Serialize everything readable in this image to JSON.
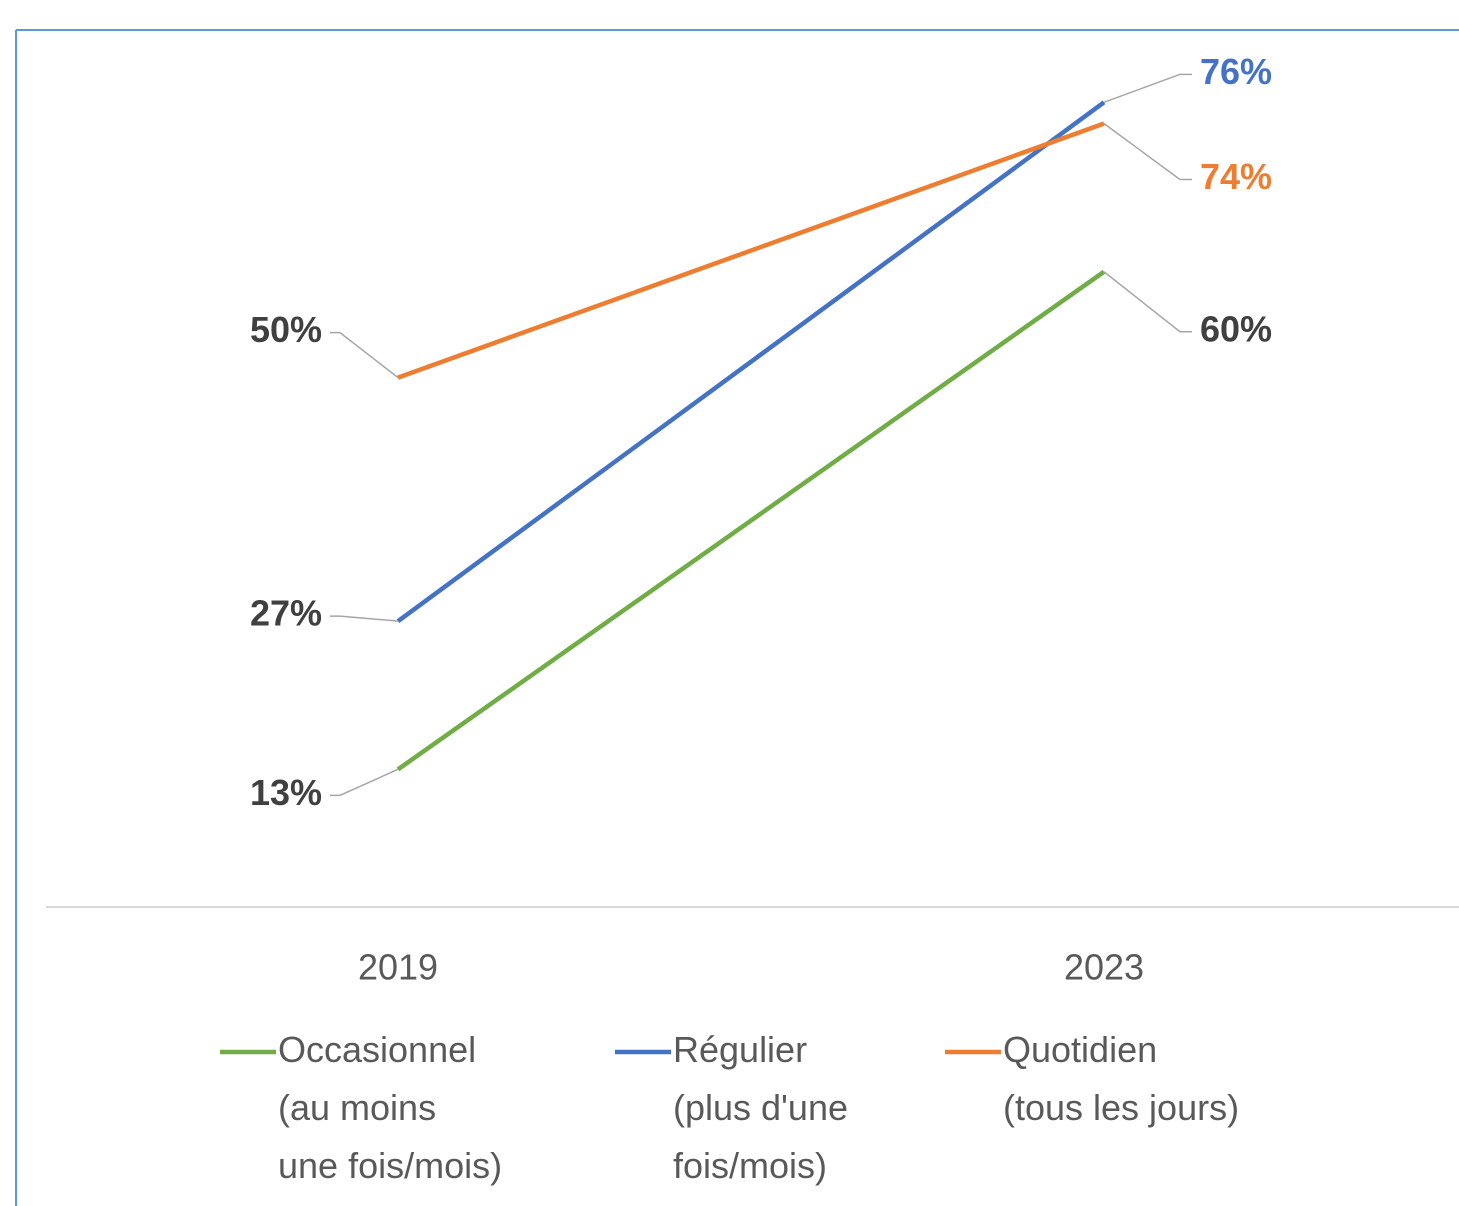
{
  "chart_data": {
    "type": "line",
    "categories": [
      "2019",
      "2023"
    ],
    "series": [
      {
        "name": "Occasionnel (au moins une fois/mois)",
        "color": "#70ad47",
        "values": [
          13,
          60
        ],
        "value_labels": [
          "13%",
          "60%"
        ],
        "label_colors": [
          "#404040",
          "#404040"
        ]
      },
      {
        "name": "Régulier (plus d'une fois/mois)",
        "color": "#4472c4",
        "values": [
          27,
          76
        ],
        "value_labels": [
          "27%",
          "76%"
        ],
        "label_colors": [
          "#404040",
          "#4472c4"
        ]
      },
      {
        "name": "Quotidien (tous les jours)",
        "color": "#ed7d31",
        "values": [
          50,
          74
        ],
        "value_labels": [
          "50%",
          "74%"
        ],
        "label_colors": [
          "#404040",
          "#ed7d31"
        ]
      }
    ],
    "ylim": [
      0,
      80
    ],
    "legend": "bottom"
  }
}
